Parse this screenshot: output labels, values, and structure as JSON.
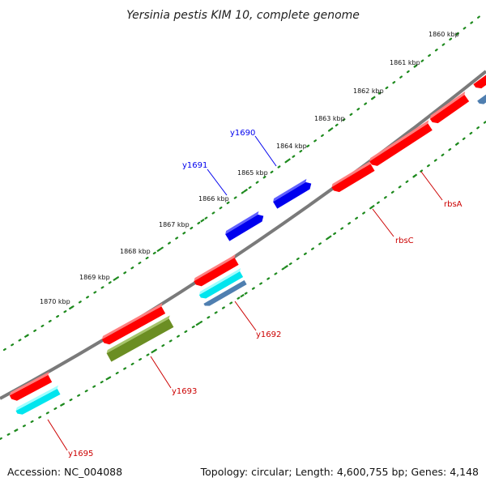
{
  "title": "Yersinia pestis KIM 10, complete genome",
  "footer": {
    "accession": "Accession: NC_004088",
    "summary": "Topology: circular; Length: 4,600,755 bp; Genes: 4,148"
  },
  "colors": {
    "backbone": "#808080",
    "scale_dots": "#1e8a1e",
    "red": "#ff0000",
    "blue": "#0000ff",
    "cyan": "#00ffff",
    "steel": "#4f7fb0",
    "olive": "#6b8e23"
  },
  "scale_labels": [
    "1860 kbp",
    "1861 kbp",
    "1862 kbp",
    "1863 kbp",
    "1864 kbp",
    "1865 kbp",
    "1866 kbp",
    "1867 kbp",
    "1868 kbp",
    "1869 kbp",
    "1870 kbp"
  ],
  "gene_labels": [
    {
      "text": "y1690",
      "color": "#0000ff"
    },
    {
      "text": "y1691",
      "color": "#0000ff"
    },
    {
      "text": "rbsA",
      "color": "#cc0000"
    },
    {
      "text": "rbsC",
      "color": "#cc0000"
    },
    {
      "text": "y1692",
      "color": "#cc0000"
    },
    {
      "text": "y1693",
      "color": "#cc0000"
    },
    {
      "text": "y1695",
      "color": "#cc0000"
    }
  ]
}
